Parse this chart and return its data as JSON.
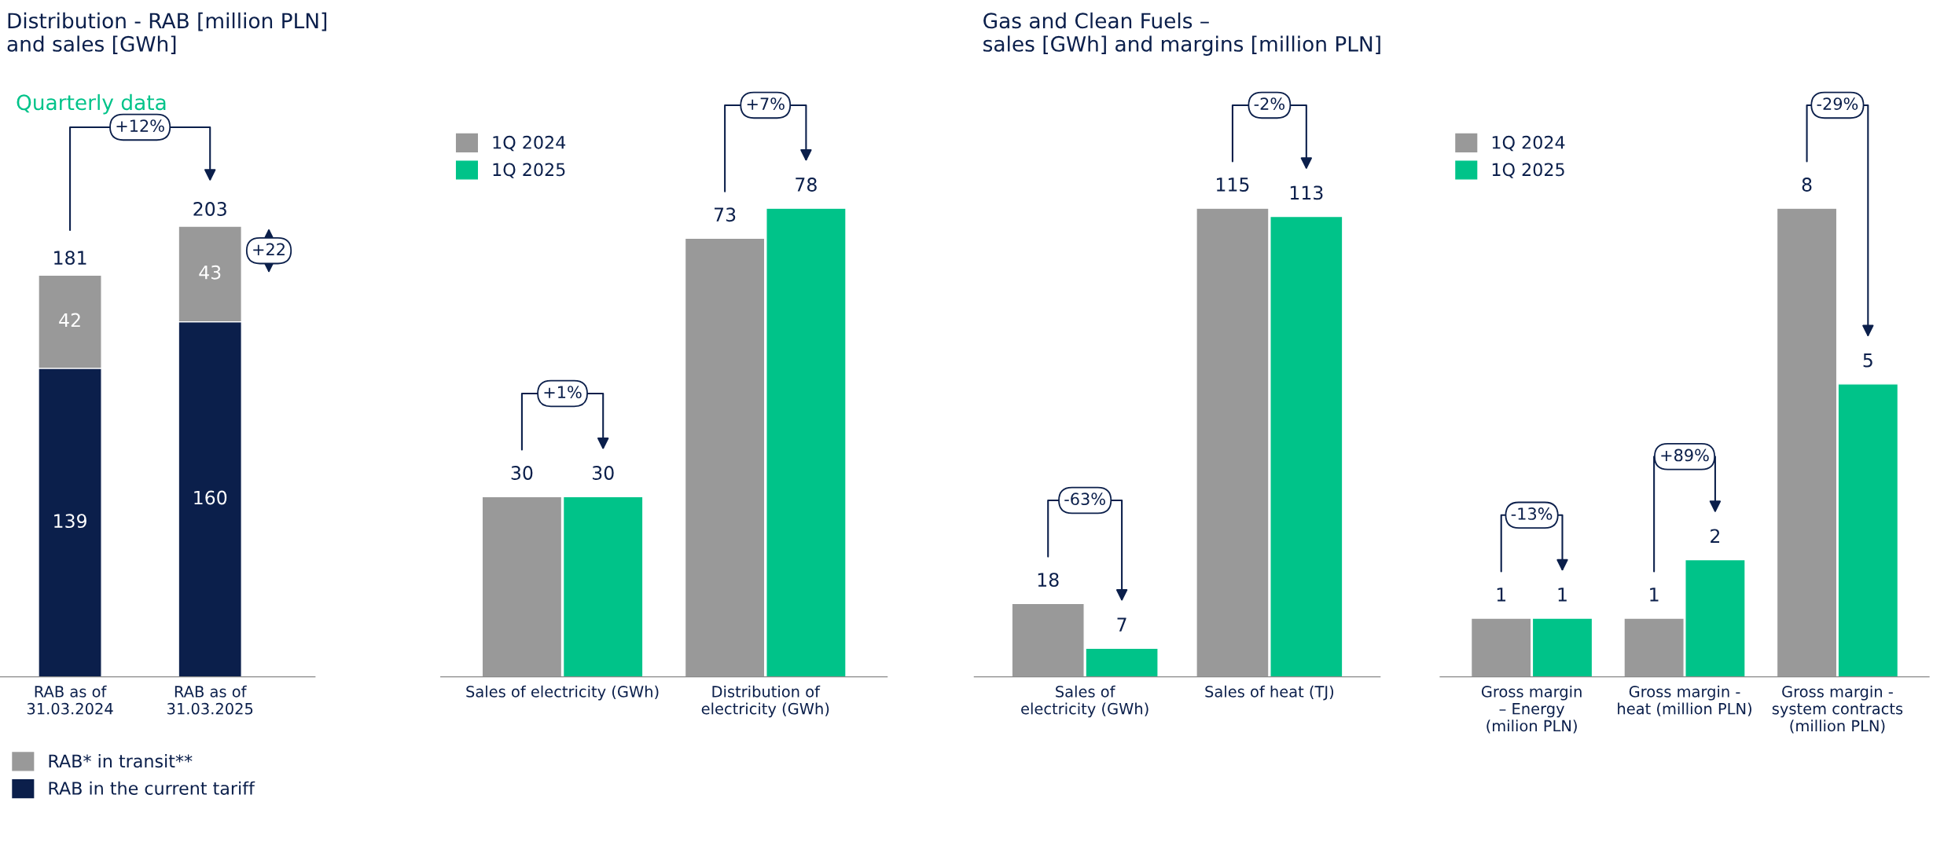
{
  "chart_data": [
    {
      "type": "bar",
      "title": "Distribution - RAB [million PLN]\nand sales [GWh]",
      "subtitle": "Quarterly data",
      "stacked": true,
      "categories": [
        "RAB as of\n31.03.2024",
        "RAB as of\n31.03.2025"
      ],
      "series": [
        {
          "name": "RAB in the current tariff",
          "color": "#0b1f4b",
          "values": [
            139,
            160
          ]
        },
        {
          "name": "RAB* in transit**",
          "color": "#999999",
          "values": [
            42,
            43
          ]
        }
      ],
      "totals": [
        "181",
        "203"
      ],
      "data_labels": true,
      "annotations": [
        "+12%",
        "+22"
      ],
      "legend": "bottom left",
      "grid": false
    },
    {
      "type": "bar",
      "categories": [
        "Sales of electricity (GWh)",
        "Distribution of\nelectricity (GWh)"
      ],
      "series": [
        {
          "name": "1Q 2024",
          "color": "#999999",
          "values": [
            30,
            73
          ]
        },
        {
          "name": "1Q 2025",
          "color": "#00c389",
          "values": [
            30,
            78
          ]
        }
      ],
      "data_labels": true,
      "annotations": [
        "+1%",
        "+7%"
      ],
      "legend": "top left",
      "grid": false
    },
    {
      "type": "bar",
      "title": "Gas and Clean Fuels –\nsales [GWh] and margins [million PLN]",
      "categories": [
        "Sales of\nelectricity (GWh)",
        "Sales of heat (TJ)"
      ],
      "series": [
        {
          "color": "#999999",
          "values": [
            18,
            115
          ]
        },
        {
          "color": "#00c389",
          "values": [
            7,
            113
          ]
        }
      ],
      "data_labels": true,
      "annotations": [
        "-63%",
        "-2%"
      ],
      "grid": false
    },
    {
      "type": "bar",
      "categories": [
        "Gross margin\n– Energy\n(milion PLN)",
        "Gross margin -\nheat (million PLN)",
        "Gross margin -\nsystem contracts\n(million PLN)"
      ],
      "series": [
        {
          "name": "1Q 2024",
          "color": "#999999",
          "values": [
            1,
            1,
            8
          ]
        },
        {
          "name": "1Q 2025",
          "color": "#00c389",
          "values": [
            1,
            2,
            5
          ]
        }
      ],
      "data_labels": true,
      "annotations": [
        "-13%",
        "+89%",
        "-29%"
      ],
      "legend": "top left",
      "grid": false
    }
  ]
}
